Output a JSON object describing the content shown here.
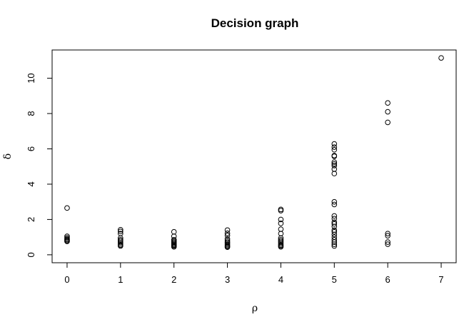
{
  "chart_data": {
    "type": "scatter",
    "title": "Decision graph",
    "xlabel": "ρ",
    "ylabel": "δ",
    "xlim": [
      -0.28,
      7.28
    ],
    "ylim": [
      -0.45,
      11.6
    ],
    "xticks": [
      0,
      1,
      2,
      3,
      4,
      5,
      6,
      7
    ],
    "yticks": [
      0,
      2,
      4,
      6,
      8,
      10
    ],
    "grid": false,
    "points": [
      {
        "x": 0,
        "y": 2.65
      },
      {
        "x": 0,
        "y": 1.05
      },
      {
        "x": 0,
        "y": 0.97
      },
      {
        "x": 0,
        "y": 0.9
      },
      {
        "x": 0,
        "y": 0.85
      },
      {
        "x": 0,
        "y": 0.8
      },
      {
        "x": 0,
        "y": 0.76
      },
      {
        "x": 1,
        "y": 1.42
      },
      {
        "x": 1,
        "y": 1.32
      },
      {
        "x": 1,
        "y": 1.2
      },
      {
        "x": 1,
        "y": 0.95
      },
      {
        "x": 1,
        "y": 0.85
      },
      {
        "x": 1,
        "y": 0.78
      },
      {
        "x": 1,
        "y": 0.7
      },
      {
        "x": 1,
        "y": 0.62
      },
      {
        "x": 1,
        "y": 0.55
      },
      {
        "x": 1,
        "y": 0.5
      },
      {
        "x": 2,
        "y": 1.3
      },
      {
        "x": 2,
        "y": 1.05
      },
      {
        "x": 2,
        "y": 0.85
      },
      {
        "x": 2,
        "y": 0.78
      },
      {
        "x": 2,
        "y": 0.72
      },
      {
        "x": 2,
        "y": 0.66
      },
      {
        "x": 2,
        "y": 0.6
      },
      {
        "x": 2,
        "y": 0.55
      },
      {
        "x": 2,
        "y": 0.5
      },
      {
        "x": 2,
        "y": 0.45
      },
      {
        "x": 3,
        "y": 1.4
      },
      {
        "x": 3,
        "y": 1.22
      },
      {
        "x": 3,
        "y": 1.1
      },
      {
        "x": 3,
        "y": 0.9
      },
      {
        "x": 3,
        "y": 0.8
      },
      {
        "x": 3,
        "y": 0.72
      },
      {
        "x": 3,
        "y": 0.65
      },
      {
        "x": 3,
        "y": 0.58
      },
      {
        "x": 3,
        "y": 0.52
      },
      {
        "x": 3,
        "y": 0.47
      },
      {
        "x": 3,
        "y": 0.43
      },
      {
        "x": 4,
        "y": 2.57
      },
      {
        "x": 4,
        "y": 2.5
      },
      {
        "x": 4,
        "y": 2.0
      },
      {
        "x": 4,
        "y": 1.78
      },
      {
        "x": 4,
        "y": 1.45
      },
      {
        "x": 4,
        "y": 1.2
      },
      {
        "x": 4,
        "y": 0.95
      },
      {
        "x": 4,
        "y": 0.85
      },
      {
        "x": 4,
        "y": 0.77
      },
      {
        "x": 4,
        "y": 0.7
      },
      {
        "x": 4,
        "y": 0.62
      },
      {
        "x": 4,
        "y": 0.55
      },
      {
        "x": 4,
        "y": 0.5
      },
      {
        "x": 4,
        "y": 0.45
      },
      {
        "x": 5,
        "y": 6.28
      },
      {
        "x": 5,
        "y": 6.1
      },
      {
        "x": 5,
        "y": 5.95
      },
      {
        "x": 5,
        "y": 5.62
      },
      {
        "x": 5,
        "y": 5.58
      },
      {
        "x": 5,
        "y": 5.25
      },
      {
        "x": 5,
        "y": 5.15
      },
      {
        "x": 5,
        "y": 5.05
      },
      {
        "x": 5,
        "y": 4.85
      },
      {
        "x": 5,
        "y": 4.6
      },
      {
        "x": 5,
        "y": 3.0
      },
      {
        "x": 5,
        "y": 2.85
      },
      {
        "x": 5,
        "y": 2.2
      },
      {
        "x": 5,
        "y": 2.05
      },
      {
        "x": 5,
        "y": 1.85
      },
      {
        "x": 5,
        "y": 1.75
      },
      {
        "x": 5,
        "y": 1.6
      },
      {
        "x": 5,
        "y": 1.4
      },
      {
        "x": 5,
        "y": 1.3
      },
      {
        "x": 5,
        "y": 1.15
      },
      {
        "x": 5,
        "y": 1.0
      },
      {
        "x": 5,
        "y": 0.85
      },
      {
        "x": 5,
        "y": 0.72
      },
      {
        "x": 5,
        "y": 0.6
      },
      {
        "x": 5,
        "y": 0.5
      },
      {
        "x": 6,
        "y": 8.6
      },
      {
        "x": 6,
        "y": 8.1
      },
      {
        "x": 6,
        "y": 7.5
      },
      {
        "x": 6,
        "y": 1.2
      },
      {
        "x": 6,
        "y": 1.08
      },
      {
        "x": 6,
        "y": 0.72
      },
      {
        "x": 6,
        "y": 0.6
      },
      {
        "x": 7,
        "y": 11.15
      }
    ]
  }
}
